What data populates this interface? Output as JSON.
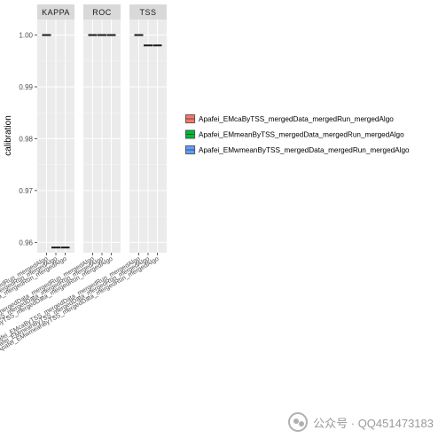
{
  "chart_data": {
    "type": "boxplot",
    "ylabel": "calibration",
    "xlabel": "",
    "ylim": [
      0.958,
      1.003
    ],
    "yticks": [
      0.96,
      0.97,
      0.98,
      0.99,
      1.0
    ],
    "ytick_labels": [
      "0.96",
      "0.97",
      "0.98",
      "0.99",
      "1.00"
    ],
    "facets": [
      "KAPPA",
      "ROC",
      "TSS"
    ],
    "categories": [
      "Apafei_EMcaByTSS_mergedData_mergedRun_mergedAlgo",
      "Apafei_EMmeanByTSS_mergedData_mergedRun_mergedAlgo",
      "Apafei_EMwmeanByTSS_mergedData_mergedRun_mergedAlgo"
    ],
    "series": [
      {
        "facet": "KAPPA",
        "values": [
          1.0,
          0.959,
          0.959
        ]
      },
      {
        "facet": "ROC",
        "values": [
          1.0,
          1.0,
          1.0
        ]
      },
      {
        "facet": "TSS",
        "values": [
          1.0,
          0.998,
          0.998
        ]
      }
    ],
    "legend": {
      "placement": "right",
      "entries": [
        {
          "label": "Apafei_EMcaByTSS_mergedData_mergedRun_mergedAlgo",
          "color": "#F8766D"
        },
        {
          "label": "Apafei_EMmeanByTSS_mergedData_mergedRun_mergedAlgo",
          "color": "#00BA38"
        },
        {
          "label": "Apafei_EMwmeanByTSS_mergedData_mergedRun_mergedAlgo",
          "color": "#619CFF"
        }
      ]
    },
    "grid": true,
    "panel_background": "#EBEBEB",
    "strip_background": "#D9D9D9"
  },
  "watermark": {
    "text": "公众号 · QQ451473183"
  }
}
